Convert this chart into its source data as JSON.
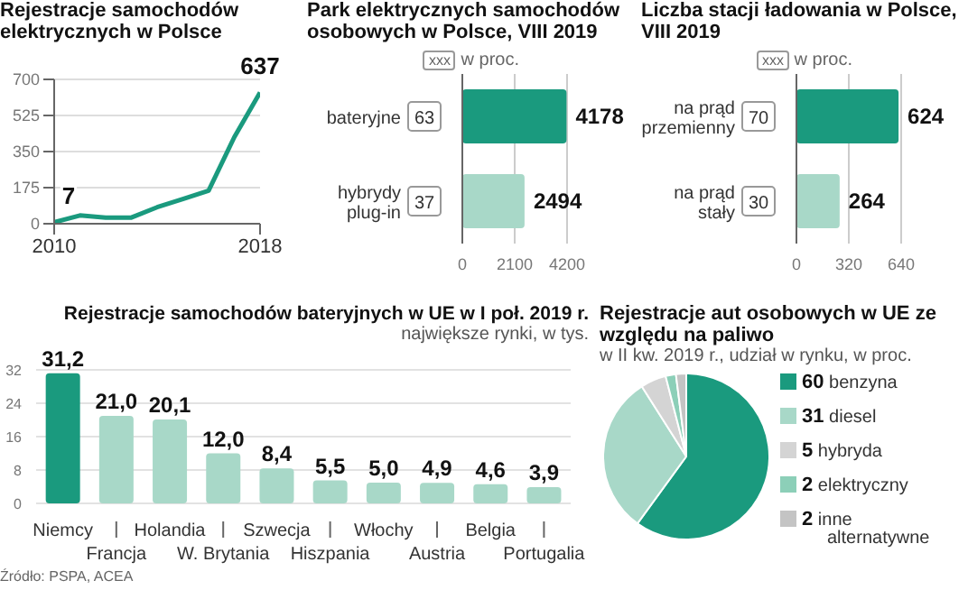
{
  "chart_data": [
    {
      "type": "line",
      "title": "Rejestracje samochodów elektrycznych w Polsce",
      "x": [
        2010,
        2011,
        2012,
        2013,
        2014,
        2015,
        2016,
        2017,
        2018
      ],
      "values": [
        7,
        40,
        30,
        30,
        80,
        120,
        160,
        420,
        637
      ],
      "value_labels": [
        "7",
        null,
        null,
        null,
        null,
        null,
        null,
        null,
        "637"
      ],
      "color": "#1a9a7e",
      "xlim": [
        2010,
        2018
      ],
      "xticks": [
        2010,
        2018
      ],
      "ylim": [
        0,
        700
      ],
      "yticks": [
        0,
        175,
        350,
        525,
        700
      ],
      "grid": "y"
    },
    {
      "type": "bar",
      "orientation": "horizontal",
      "title": "Park elektrycznych samochodów osobowych w Polsce, VIII 2019",
      "categories": [
        "bateryjne",
        "hybrydy plug-in"
      ],
      "values": [
        4178,
        2494
      ],
      "colors": [
        "#1a9a7e",
        "#a8d8c8"
      ],
      "xlim": [
        0,
        4200
      ],
      "xticks": [
        0,
        2100,
        4200
      ],
      "grid": "x",
      "data_labels": true,
      "annotations": [
        "xxx w proc.",
        "63",
        "37"
      ]
    },
    {
      "type": "bar",
      "orientation": "horizontal",
      "title": "Liczba stacji ładowania w Polsce, VIII 2019",
      "categories": [
        "na prąd przemienny",
        "na prąd stały"
      ],
      "values": [
        624,
        264
      ],
      "colors": [
        "#1a9a7e",
        "#a8d8c8"
      ],
      "xlim": [
        0,
        640
      ],
      "xticks": [
        0,
        320,
        640
      ],
      "grid": "x",
      "data_labels": true,
      "annotations": [
        "xxx w proc.",
        "70",
        "30"
      ]
    },
    {
      "type": "bar",
      "title": "Rejestracje samochodów bateryjnych w UE w I poł. 2019 r.",
      "subtitle": "największe rynki, w tys.",
      "categories": [
        "Niemcy",
        "Francja",
        "Holandia",
        "W. Brytania",
        "Szwecja",
        "Hiszpania",
        "Włochy",
        "Austria",
        "Belgia",
        "Portugalia"
      ],
      "values": [
        31.2,
        21.0,
        20.1,
        12.0,
        8.4,
        5.5,
        5.0,
        4.9,
        4.6,
        3.9
      ],
      "value_labels": [
        "31,2",
        "21,0",
        "20,1",
        "12,0",
        "8,4",
        "5,5",
        "5,0",
        "4,9",
        "4,6",
        "3,9"
      ],
      "colors": [
        "#1a9a7e",
        "#a8d8c8",
        "#a8d8c8",
        "#a8d8c8",
        "#a8d8c8",
        "#a8d8c8",
        "#a8d8c8",
        "#a8d8c8",
        "#a8d8c8",
        "#a8d8c8"
      ],
      "ylim": [
        0,
        32
      ],
      "yticks": [
        0,
        8,
        16,
        24,
        32
      ],
      "grid": "y",
      "annotations": [
        "Źródło: PSPA, ACEA"
      ]
    },
    {
      "type": "pie",
      "title": "Rejestracje aut osobowych w UE ze względu na paliwo",
      "subtitle": "w II kw. 2019 r., udział w rynku, w proc.",
      "categories": [
        "benzyna",
        "diesel",
        "hybryda",
        "elektryczny",
        "inne alternatywne"
      ],
      "values": [
        60,
        31,
        5,
        2,
        2
      ],
      "colors": [
        "#1a9a7e",
        "#a8d8c8",
        "#d4d4d4",
        "#8ccfb8",
        "#c4c4c4"
      ],
      "data_labels": true,
      "legend": "right"
    }
  ]
}
